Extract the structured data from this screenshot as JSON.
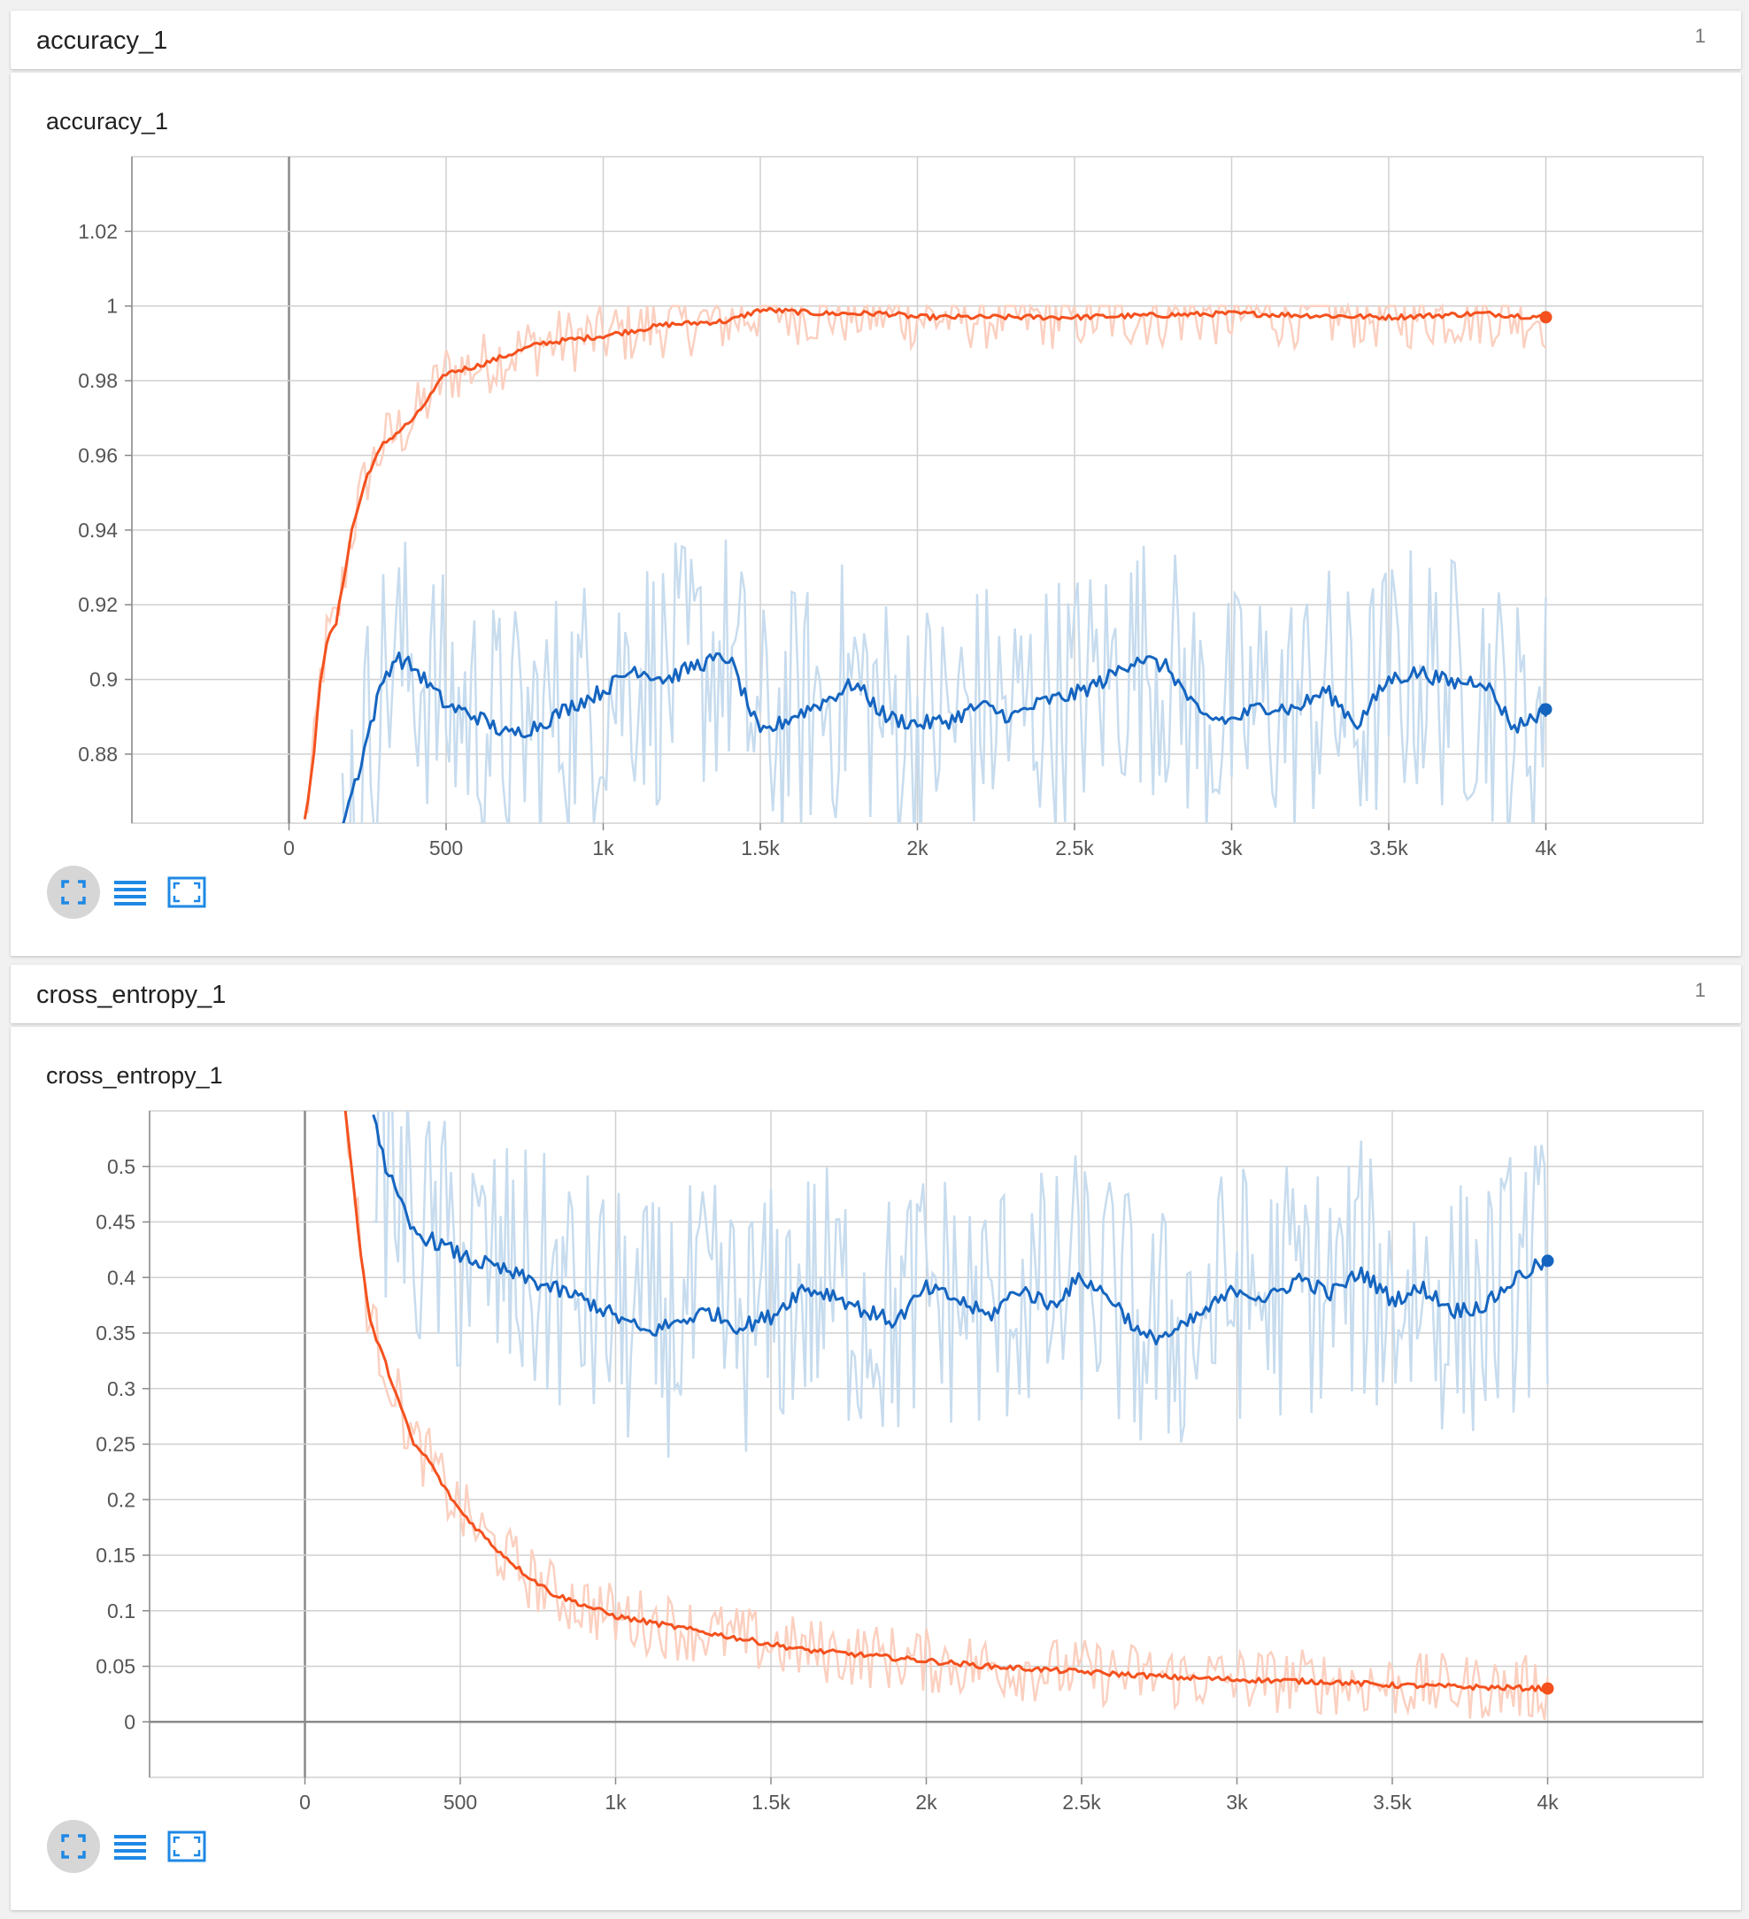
{
  "groups": [
    {
      "header": {
        "title": "accuracy_1",
        "count": "1"
      },
      "card_title": "accuracy_1"
    },
    {
      "header": {
        "title": "cross_entropy_1",
        "count": "1"
      },
      "card_title": "cross_entropy_1"
    }
  ],
  "toolbar_icons": [
    "fit-domain-icon",
    "toggle-log-scale-icon",
    "expand-chart-icon"
  ],
  "colors": {
    "train": "#f4511e",
    "train_raw": "#fbd0c0",
    "eval": "#1565c0",
    "eval_raw": "#c7dcee"
  },
  "chart_data": [
    {
      "type": "line",
      "title": "accuracy_1",
      "xlim": [
        -500,
        4500
      ],
      "ylim": [
        0.8615,
        1.04
      ],
      "x_ticks": [
        0,
        500,
        1000,
        1500,
        2000,
        2500,
        3000,
        3500,
        4000
      ],
      "x_tick_labels": [
        "0",
        "500",
        "1k",
        "1.5k",
        "2k",
        "2.5k",
        "3k",
        "3.5k",
        "4k"
      ],
      "y_ticks": [
        0.88,
        0.9,
        0.92,
        0.94,
        0.96,
        0.98,
        1,
        1.02
      ],
      "y_tick_labels": [
        "0.88",
        "0.9",
        "0.92",
        "0.94",
        "0.96",
        "0.98",
        "1",
        "1.02"
      ],
      "grid": true,
      "series": [
        {
          "role": "train",
          "smoothed": {
            "x": [
              50,
              80,
              100,
              120,
              150,
              200,
              250,
              300,
              400,
              500,
              600,
              700,
              800,
              1000,
              1200,
              1400,
              1500,
              1700,
              1900,
              2000,
              2500,
              3000,
              3500,
              3800,
              4000
            ],
            "y": [
              0.862,
              0.88,
              0.9,
              0.91,
              0.915,
              0.94,
              0.955,
              0.963,
              0.97,
              0.982,
              0.984,
              0.987,
              0.99,
              0.992,
              0.995,
              0.996,
              0.999,
              0.998,
              0.998,
              0.997,
              0.997,
              0.998,
              0.997,
              0.998,
              0.997
            ]
          }
        },
        {
          "role": "eval",
          "smoothed": {
            "x": [
              170,
              220,
              260,
              300,
              340,
              400,
              500,
              600,
              700,
              800,
              900,
              1000,
              1100,
              1200,
              1300,
              1400,
              1500,
              1600,
              1700,
              1800,
              1900,
              2000,
              2100,
              2200,
              2300,
              2400,
              2500,
              2600,
              2700,
              2800,
              2900,
              3000,
              3100,
              3200,
              3300,
              3400,
              3500,
              3600,
              3700,
              3800,
              3900,
              4000
            ],
            "y": [
              0.862,
              0.875,
              0.888,
              0.9,
              0.906,
              0.903,
              0.893,
              0.89,
              0.885,
              0.888,
              0.893,
              0.897,
              0.903,
              0.9,
              0.904,
              0.906,
              0.885,
              0.89,
              0.894,
              0.899,
              0.89,
              0.888,
              0.889,
              0.893,
              0.89,
              0.894,
              0.896,
              0.9,
              0.906,
              0.903,
              0.89,
              0.889,
              0.893,
              0.892,
              0.897,
              0.888,
              0.9,
              0.902,
              0.899,
              0.9,
              0.887,
              0.892
            ]
          }
        }
      ]
    },
    {
      "type": "line",
      "title": "cross_entropy_1",
      "xlim": [
        -500,
        4500
      ],
      "ylim": [
        -0.05,
        0.55
      ],
      "x_ticks": [
        0,
        500,
        1000,
        1500,
        2000,
        2500,
        3000,
        3500,
        4000
      ],
      "x_tick_labels": [
        "0",
        "500",
        "1k",
        "1.5k",
        "2k",
        "2.5k",
        "3k",
        "3.5k",
        "4k"
      ],
      "y_ticks": [
        0,
        0.05,
        0.1,
        0.15,
        0.2,
        0.25,
        0.3,
        0.35,
        0.4,
        0.45,
        0.5
      ],
      "y_tick_labels": [
        "0",
        "0.05",
        "0.1",
        "0.15",
        "0.2",
        "0.25",
        "0.3",
        "0.35",
        "0.4",
        "0.45",
        "0.5"
      ],
      "grid": true,
      "series": [
        {
          "role": "train",
          "smoothed": {
            "x": [
              130,
              150,
              180,
              210,
              250,
              300,
              350,
              400,
              450,
              500,
              600,
              700,
              800,
              900,
              1000,
              1200,
              1400,
              1600,
              1800,
              2000,
              2200,
              2500,
              2800,
              3000,
              3300,
              3500,
              3800,
              4000
            ],
            "y": [
              0.55,
              0.5,
              0.42,
              0.36,
              0.33,
              0.29,
              0.25,
              0.235,
              0.21,
              0.19,
              0.16,
              0.135,
              0.115,
              0.105,
              0.095,
              0.085,
              0.075,
              0.065,
              0.06,
              0.055,
              0.05,
              0.045,
              0.04,
              0.038,
              0.036,
              0.033,
              0.031,
              0.03
            ]
          }
        },
        {
          "role": "eval",
          "smoothed": {
            "x": [
              220,
              260,
              300,
              350,
              400,
              500,
              600,
              700,
              800,
              900,
              1000,
              1100,
              1200,
              1300,
              1400,
              1500,
              1600,
              1700,
              1800,
              1900,
              2000,
              2100,
              2200,
              2300,
              2400,
              2500,
              2600,
              2700,
              2800,
              2900,
              3000,
              3100,
              3200,
              3300,
              3400,
              3500,
              3600,
              3700,
              3800,
              3900,
              4000
            ],
            "y": [
              0.55,
              0.5,
              0.47,
              0.44,
              0.435,
              0.42,
              0.41,
              0.4,
              0.39,
              0.38,
              0.365,
              0.35,
              0.36,
              0.37,
              0.355,
              0.365,
              0.39,
              0.385,
              0.37,
              0.36,
              0.39,
              0.38,
              0.365,
              0.39,
              0.375,
              0.4,
              0.38,
              0.345,
              0.35,
              0.37,
              0.39,
              0.38,
              0.4,
              0.385,
              0.405,
              0.38,
              0.39,
              0.37,
              0.375,
              0.4,
              0.415
            ]
          }
        }
      ]
    }
  ]
}
